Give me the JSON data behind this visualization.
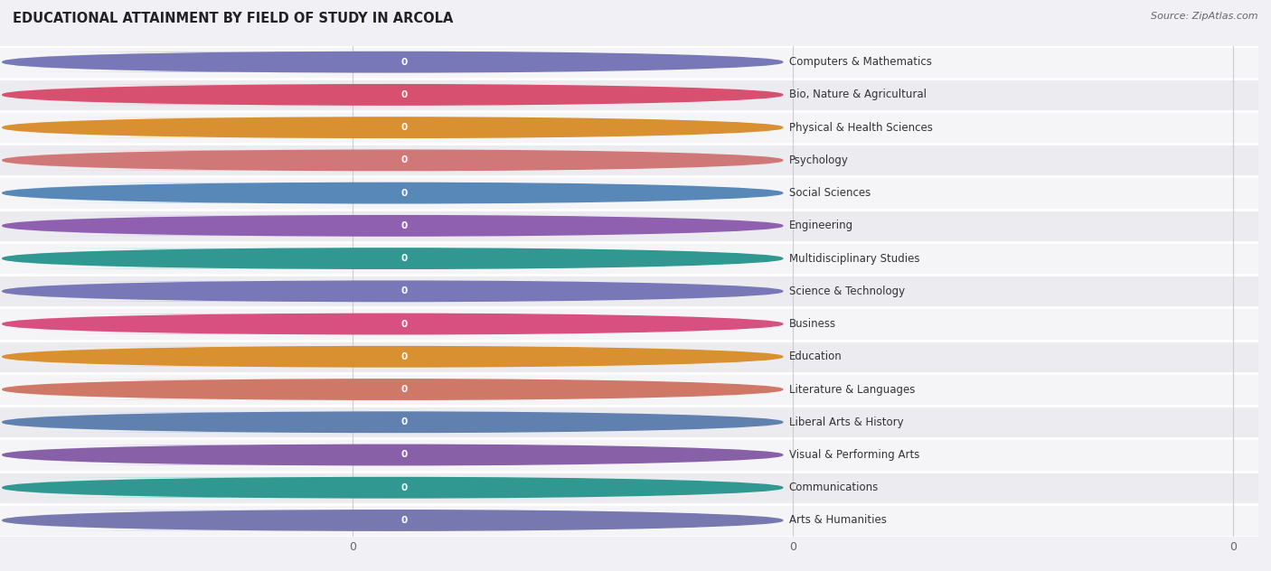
{
  "title": "EDUCATIONAL ATTAINMENT BY FIELD OF STUDY IN ARCOLA",
  "source": "Source: ZipAtlas.com",
  "categories": [
    "Computers & Mathematics",
    "Bio, Nature & Agricultural",
    "Physical & Health Sciences",
    "Psychology",
    "Social Sciences",
    "Engineering",
    "Multidisciplinary Studies",
    "Science & Technology",
    "Business",
    "Education",
    "Literature & Languages",
    "Liberal Arts & History",
    "Visual & Performing Arts",
    "Communications",
    "Arts & Humanities"
  ],
  "values": [
    0,
    0,
    0,
    0,
    0,
    0,
    0,
    0,
    0,
    0,
    0,
    0,
    0,
    0,
    0
  ],
  "bar_colors": [
    "#b8b8e0",
    "#f8b0c0",
    "#fad0a0",
    "#f8b8b8",
    "#b8d4f0",
    "#d0b8e8",
    "#80d4cc",
    "#c0c0f0",
    "#f8b8cc",
    "#fad0a0",
    "#f8c0b8",
    "#b8ccec",
    "#ccc0e4",
    "#80d4cc",
    "#c0c0e8"
  ],
  "circle_colors": [
    "#7878b8",
    "#d85070",
    "#d89030",
    "#d07878",
    "#5888b8",
    "#9060b0",
    "#309890",
    "#7878b8",
    "#d85080",
    "#d89030",
    "#d07868",
    "#6080b0",
    "#8860a8",
    "#309890",
    "#7878b0"
  ],
  "row_colors": [
    "#f5f5f8",
    "#ebebf0"
  ],
  "background_color": "#f0f0f5",
  "title_fontsize": 10.5,
  "label_fontsize": 8.5,
  "value_fontsize": 7.5,
  "source_fontsize": 8
}
